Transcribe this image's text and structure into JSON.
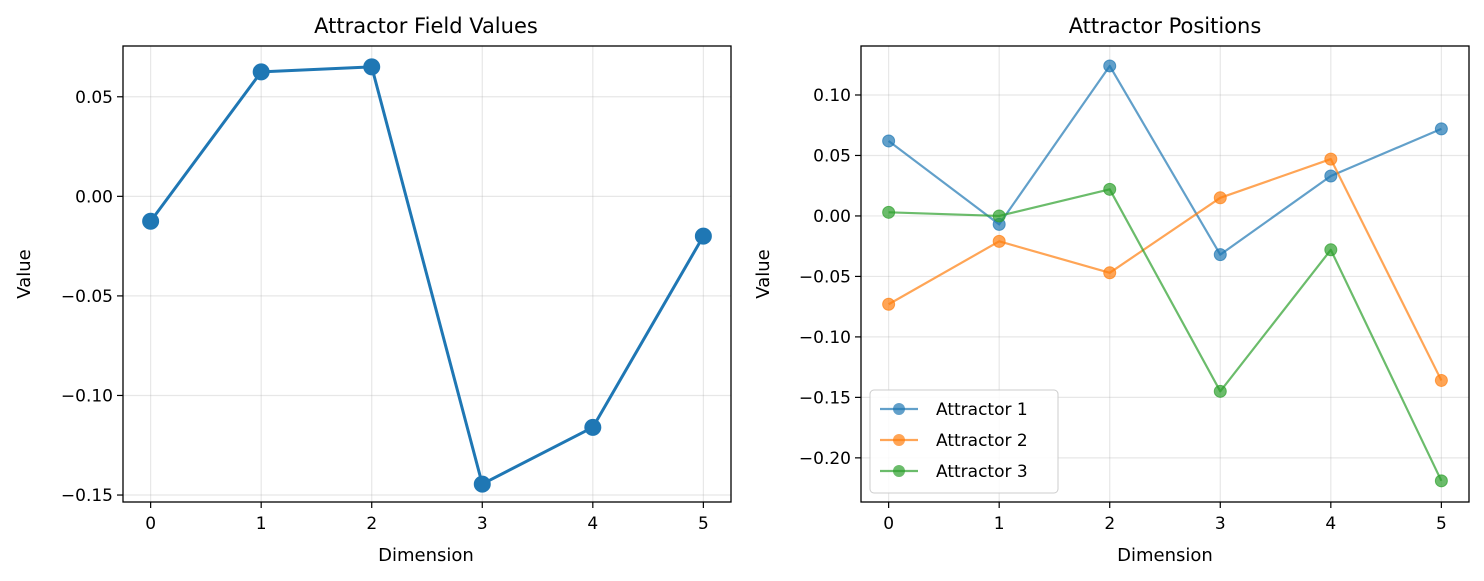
{
  "chart_data": [
    {
      "type": "line",
      "title": "Attractor Field Values",
      "xlabel": "Dimension",
      "ylabel": "Value",
      "x": [
        0,
        1,
        2,
        3,
        4,
        5
      ],
      "xlim": [
        -0.25,
        5.25
      ],
      "ylim": [
        -0.1535,
        0.0755
      ],
      "xticks": [
        0,
        1,
        2,
        3,
        4,
        5
      ],
      "yticks": [
        0.05,
        0.0,
        -0.05,
        -0.1,
        -0.15
      ],
      "ytick_labels": [
        "0.05",
        "0.00",
        "−0.05",
        "−0.10",
        "−0.15"
      ],
      "grid": true,
      "series": [
        {
          "values": [
            -0.0125,
            0.0625,
            0.065,
            -0.1445,
            -0.116,
            -0.02
          ],
          "color": "#1f77b4"
        }
      ]
    },
    {
      "type": "line",
      "title": "Attractor Positions",
      "xlabel": "Dimension",
      "ylabel": "Value",
      "x": [
        0,
        1,
        2,
        3,
        4,
        5
      ],
      "xlim": [
        -0.25,
        5.25
      ],
      "ylim": [
        -0.2365,
        0.1405
      ],
      "xticks": [
        0,
        1,
        2,
        3,
        4,
        5
      ],
      "yticks": [
        0.1,
        0.05,
        0.0,
        -0.05,
        -0.1,
        -0.15,
        -0.2
      ],
      "ytick_labels": [
        "0.10",
        "0.05",
        "0.00",
        "−0.05",
        "−0.10",
        "−0.15",
        "−0.20"
      ],
      "grid": true,
      "legend_position": "lower-left",
      "series": [
        {
          "name": "Attractor 1",
          "values": [
            0.062,
            -0.007,
            0.124,
            -0.032,
            0.033,
            0.072
          ],
          "color": "#1f77b4"
        },
        {
          "name": "Attractor 2",
          "values": [
            -0.073,
            -0.021,
            -0.047,
            0.015,
            0.047,
            -0.136
          ],
          "color": "#ff7f0e"
        },
        {
          "name": "Attractor 3",
          "values": [
            0.003,
            0.0,
            0.022,
            -0.145,
            -0.028,
            -0.219
          ],
          "color": "#2ca02c"
        }
      ]
    }
  ]
}
